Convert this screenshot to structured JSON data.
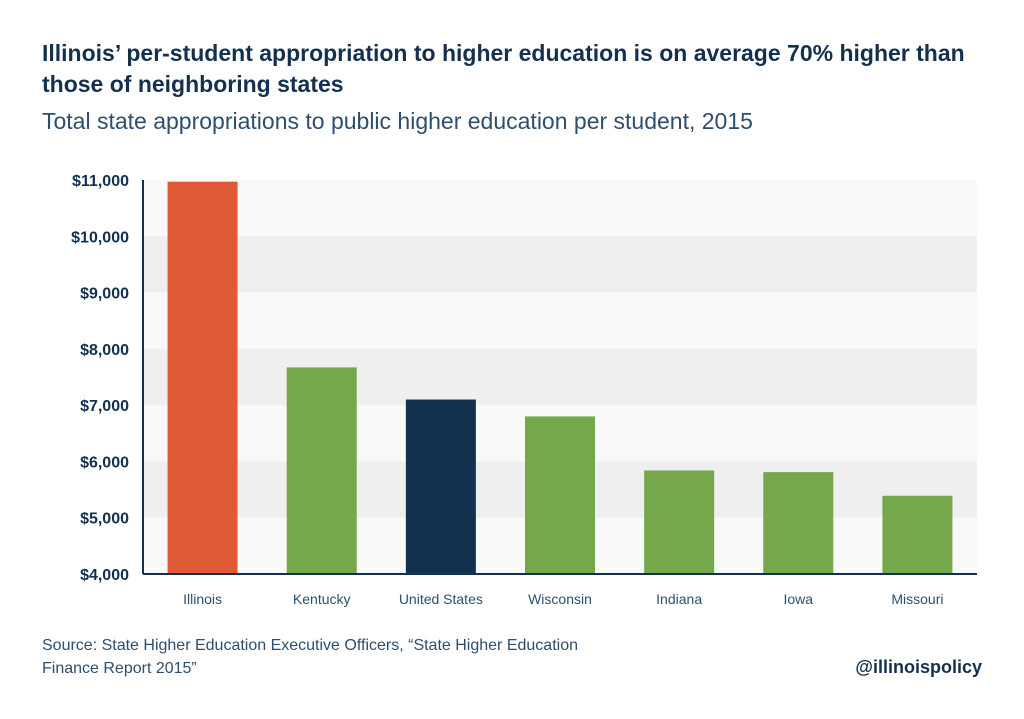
{
  "header": {
    "title": "Illinois’ per-student appropriation to higher education is on average 70% higher than those of neighboring states",
    "subtitle": "Total state appropriations to public higher education per student, 2015"
  },
  "footer": {
    "source_line1": "Source: State Higher Education Executive Officers, “State Higher Education",
    "source_line2": "Finance Report 2015”",
    "handle": "@illinoispolicy"
  },
  "colors": {
    "highlight": "#e05a36",
    "neighbor": "#74a84a",
    "national": "#14304f",
    "band_dark": "#efefef",
    "band_light": "#f9f9f8",
    "axis": "#14304f"
  },
  "chart_data": {
    "type": "bar",
    "title": "Total state appropriations to public higher education per student, 2015",
    "xlabel": "",
    "ylabel": "",
    "categories": [
      "Illinois",
      "Kentucky",
      "United States",
      "Wisconsin",
      "Indiana",
      "Iowa",
      "Missouri"
    ],
    "values": [
      10970,
      7670,
      7100,
      6800,
      5840,
      5810,
      5390
    ],
    "bar_colors": [
      "#e05a36",
      "#74a84a",
      "#14304f",
      "#74a84a",
      "#74a84a",
      "#74a84a",
      "#74a84a"
    ],
    "ylim": [
      4000,
      11000
    ],
    "yticks": [
      11000,
      10000,
      9000,
      8000,
      7000,
      6000,
      5000,
      4000
    ],
    "ytick_labels": [
      "$11,000",
      "$10,000",
      "$9,000",
      "$8,000",
      "$7,000",
      "$6,000",
      "$5,000",
      "$4,000"
    ],
    "grid": "horizontal bands",
    "legend": "none"
  }
}
